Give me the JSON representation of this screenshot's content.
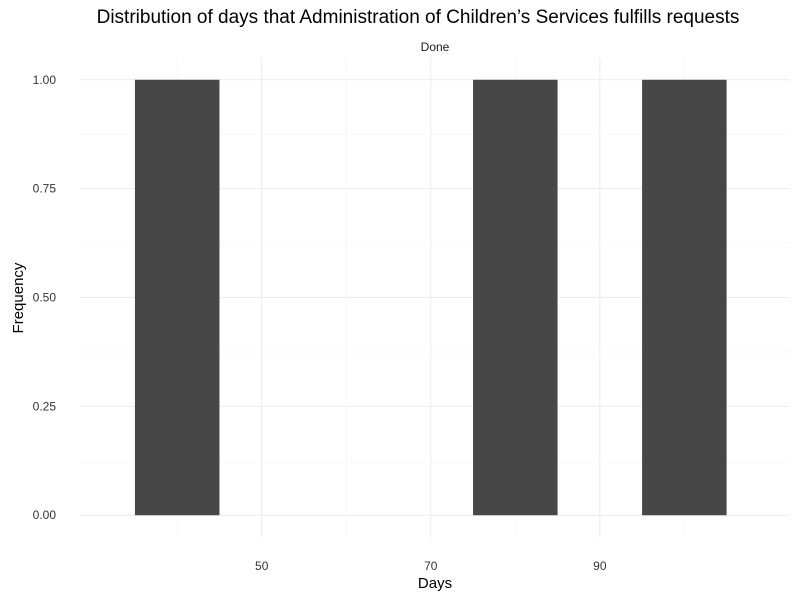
{
  "chart_data": {
    "type": "bar",
    "title": "Distribution of days that Administration of Children’s Services fulfills requests",
    "facet_label": "Done",
    "xlabel": "Days",
    "ylabel": "Frequency",
    "bins": [
      {
        "x_min": 35,
        "x_max": 45,
        "count": 1
      },
      {
        "x_min": 75,
        "x_max": 85,
        "count": 1
      },
      {
        "x_min": 95,
        "x_max": 105,
        "count": 1
      }
    ],
    "xlim": [
      28.5,
      112.5
    ],
    "ylim": [
      -0.05,
      1.05
    ],
    "x_ticks": [
      50,
      70,
      90
    ],
    "x_tick_labels": [
      "50",
      "70",
      "90"
    ],
    "x_minor_ticks": [
      40,
      60,
      80,
      100
    ],
    "y_ticks": [
      0,
      0.25,
      0.5,
      0.75,
      1
    ],
    "y_tick_labels": [
      "0.00",
      "0.25",
      "0.50",
      "0.75",
      "1.00"
    ],
    "y_minor_ticks": [
      0.125,
      0.375,
      0.625,
      0.875
    ],
    "grid": true,
    "legend": "none",
    "colors": {
      "bar_fill": "#474747",
      "grid_major": "#ebebeb",
      "grid_minor": "#f3f3f3",
      "background": "#ffffff"
    }
  }
}
